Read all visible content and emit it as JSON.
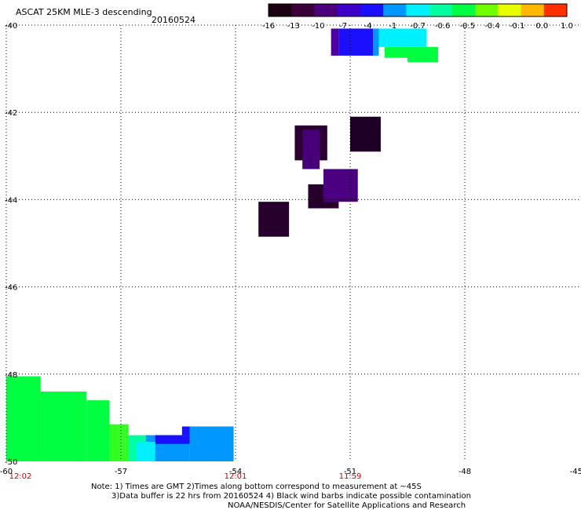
{
  "header": {
    "title": "ASCAT 25KM MLE-3 descending",
    "date": "20160524"
  },
  "chart_data": {
    "type": "heatmap",
    "title": "ASCAT 25KM MLE-3 descending",
    "date": "20160524",
    "xlim": [
      -60,
      -45
    ],
    "ylim": [
      -50,
      -40
    ],
    "x_ticks": [
      -60,
      -57,
      -54,
      -51,
      -48,
      -45
    ],
    "y_ticks": [
      -40,
      -42,
      -44,
      -46,
      -48,
      -50
    ],
    "x_tick_labels": [
      "-60",
      "-57",
      "-54",
      "-51",
      "-48",
      "-45"
    ],
    "y_tick_labels": [
      "-40",
      "-42",
      "-44",
      "-46",
      "-48",
      "-50"
    ],
    "grid": true,
    "colorbar": {
      "labels": [
        "-16",
        "-13",
        "-10",
        "-7",
        "-4",
        "-1",
        "-0.7",
        "-0.6",
        "-0.5",
        "-0.4",
        "-0.1",
        "0.0",
        "1.0"
      ],
      "colors": [
        "#1a0010",
        "#3a0038",
        "#4c007a",
        "#3c00c8",
        "#1a10ff",
        "#0098ff",
        "#00f0ff",
        "#00ffa0",
        "#00ff40",
        "#70ff00",
        "#e8ff00",
        "#ffb800",
        "#ff3000"
      ]
    },
    "time_labels": [
      {
        "x": -60,
        "text": "12:02"
      },
      {
        "x": -54,
        "text": "12:01"
      },
      {
        "x": -51,
        "text": "11:59"
      }
    ],
    "cells": [
      {
        "x0": -51.3,
        "x1": -50.4,
        "y0": -40.08,
        "y1": -40.7,
        "color": "#1a10ff"
      },
      {
        "x0": -51.5,
        "x1": -51.3,
        "y0": -40.08,
        "y1": -40.7,
        "color": "#5000a0"
      },
      {
        "x0": -50.4,
        "x1": -50.25,
        "y0": -40.08,
        "y1": -40.7,
        "color": "#0098ff"
      },
      {
        "x0": -50.25,
        "x1": -49.0,
        "y0": -40.08,
        "y1": -40.5,
        "color": "#00f0ff"
      },
      {
        "x0": -50.1,
        "x1": -49.5,
        "y0": -40.5,
        "y1": -40.75,
        "color": "#00ff40"
      },
      {
        "x0": -49.5,
        "x1": -48.7,
        "y0": -40.5,
        "y1": -40.85,
        "color": "#00ff40"
      },
      {
        "x0": -51.0,
        "x1": -50.2,
        "y0": -42.1,
        "y1": -42.9,
        "color": "#1e0024"
      },
      {
        "x0": -52.45,
        "x1": -51.6,
        "y0": -42.3,
        "y1": -43.1,
        "color": "#2a0030"
      },
      {
        "x0": -52.25,
        "x1": -51.8,
        "y0": -42.4,
        "y1": -43.3,
        "color": "#480078"
      },
      {
        "x0": -52.1,
        "x1": -51.3,
        "y0": -43.65,
        "y1": -44.2,
        "color": "#28002c"
      },
      {
        "x0": -51.7,
        "x1": -50.8,
        "y0": -43.3,
        "y1": -44.05,
        "color": "#4a0080"
      },
      {
        "x0": -53.4,
        "x1": -52.6,
        "y0": -44.05,
        "y1": -44.85,
        "color": "#28002c"
      },
      {
        "x0": -60.0,
        "x1": -59.1,
        "y0": -48.05,
        "y1": -50.0,
        "color": "#00ff40"
      },
      {
        "x0": -59.1,
        "x1": -57.9,
        "y0": -48.4,
        "y1": -50.0,
        "color": "#00ff40"
      },
      {
        "x0": -57.9,
        "x1": -57.3,
        "y0": -48.6,
        "y1": -50.0,
        "color": "#00ff40"
      },
      {
        "x0": -57.3,
        "x1": -56.8,
        "y0": -49.15,
        "y1": -50.0,
        "color": "#30ff20"
      },
      {
        "x0": -56.8,
        "x1": -56.35,
        "y0": -49.4,
        "y1": -50.0,
        "color": "#00ffa0"
      },
      {
        "x0": -56.35,
        "x1": -55.2,
        "y0": -49.4,
        "y1": -50.0,
        "color": "#0098ff"
      },
      {
        "x0": -55.2,
        "x1": -54.05,
        "y0": -49.2,
        "y1": -50.0,
        "color": "#0098ff"
      },
      {
        "x0": -56.1,
        "x1": -55.2,
        "y0": -49.4,
        "y1": -49.6,
        "color": "#1a10ff"
      },
      {
        "x0": -55.4,
        "x1": -55.2,
        "y0": -49.2,
        "y1": -49.4,
        "color": "#1a10ff"
      },
      {
        "x0": -56.6,
        "x1": -56.1,
        "y0": -49.55,
        "y1": -50.0,
        "color": "#00f0ff"
      }
    ]
  },
  "notes": {
    "line1": "Note: 1) Times are GMT 2)Times along bottom correspond to measurement at ~45S",
    "line2": "3)Data buffer is 22 hrs from 20160524 4) Black wind barbs indicate possible contamination",
    "line3": "NOAA/NESDIS/Center for Satellite Applications and Research"
  }
}
